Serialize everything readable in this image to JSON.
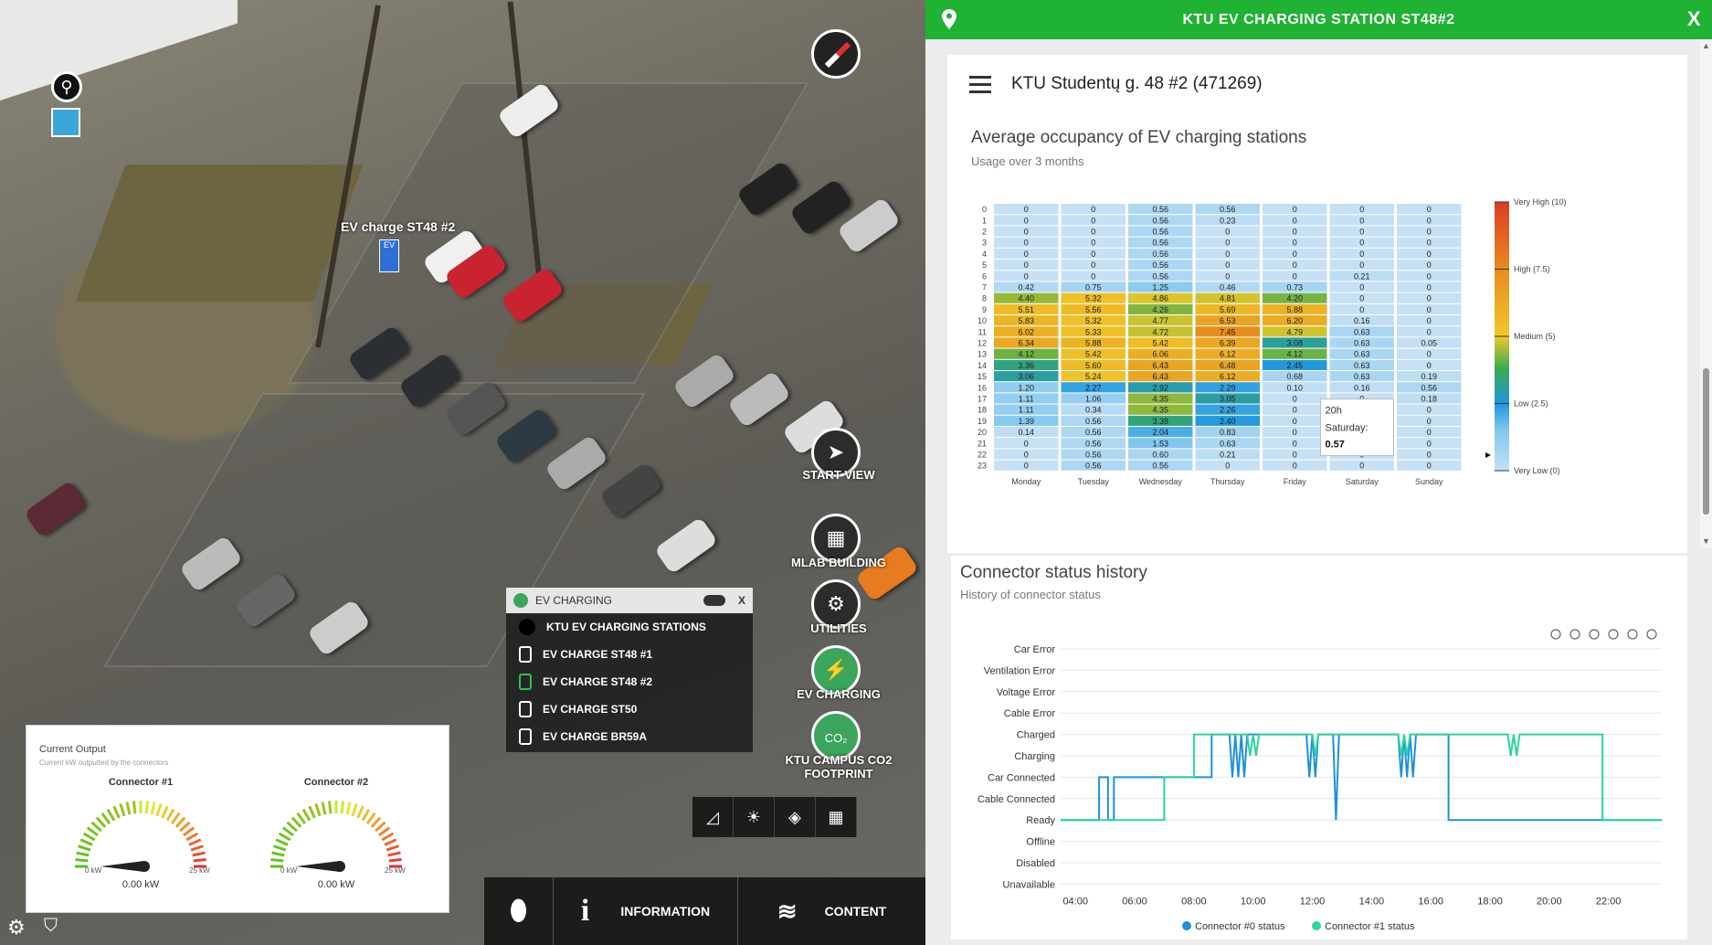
{
  "map": {
    "ev_marker_label": "EV charge ST48 #2",
    "ev_marker_icon": "EV",
    "side_buttons": [
      {
        "label": "START VIEW",
        "icon": "paper-plane-icon"
      },
      {
        "label": "MLAB BUILDING",
        "icon": "building-icon"
      },
      {
        "label": "UTILITIES",
        "icon": "utilities-icon"
      },
      {
        "label": "EV CHARGING",
        "icon": "ev-charging-icon"
      },
      {
        "label": "KTU CAMPUS CO2 FOOTPRINT",
        "icon": "co2-icon"
      }
    ],
    "ev_panel": {
      "title": "EV CHARGING",
      "close": "X",
      "items": [
        "KTU EV CHARGING STATIONS",
        "EV CHARGE ST48 #1",
        "EV CHARGE ST48 #2",
        "EV CHARGE ST50",
        "EV CHARGE BR59A"
      ]
    },
    "current_output": {
      "title": "Current Output",
      "subtitle": "Current kW outputted by the connectors",
      "gauges": [
        {
          "name": "Connector #1",
          "value": "0.00 kW",
          "min": "0 kW",
          "max": "25 kW",
          "level": 0
        },
        {
          "name": "Connector #2",
          "value": "0.00 kW",
          "min": "0 kW",
          "max": "25 kW",
          "level": 0
        }
      ]
    },
    "toolbar": {
      "information": "INFORMATION",
      "content": "CONTENT"
    }
  },
  "panel": {
    "header": "KTU EV CHARGING STATION ST48#2",
    "close": "X",
    "station_name": "KTU Studentų g. 48 #2 (471269)",
    "heatmap_title": "Average occupancy of EV charging stations",
    "heatmap_subtitle": "Usage over 3 months",
    "history_title": "Connector status history",
    "history_subtitle": "History of connector status",
    "tooltip": {
      "hour": "20h",
      "day": "Saturday:",
      "value": "0.57"
    }
  },
  "chart_data": [
    {
      "type": "heatmap",
      "title": "Average occupancy of EV charging stations",
      "subtitle": "Usage over 3 months",
      "x": [
        "Monday",
        "Tuesday",
        "Wednesday",
        "Thursday",
        "Friday",
        "Saturday",
        "Sunday"
      ],
      "y": [
        "0",
        "1",
        "2",
        "3",
        "4",
        "5",
        "6",
        "7",
        "8",
        "9",
        "10",
        "11",
        "12",
        "13",
        "14",
        "15",
        "16",
        "17",
        "18",
        "19",
        "20",
        "21",
        "22",
        "23"
      ],
      "values": [
        [
          "0",
          "0",
          "0.56",
          "0.56",
          "0",
          "0",
          "0"
        ],
        [
          "0",
          "0",
          "0.56",
          "0.23",
          "0",
          "0",
          "0"
        ],
        [
          "0",
          "0",
          "0.56",
          "0",
          "0",
          "0",
          "0"
        ],
        [
          "0",
          "0",
          "0.56",
          "0",
          "0",
          "0",
          "0"
        ],
        [
          "0",
          "0",
          "0.56",
          "0",
          "0",
          "0",
          "0"
        ],
        [
          "0",
          "0",
          "0.56",
          "0",
          "0",
          "0",
          "0"
        ],
        [
          "0",
          "0",
          "0.56",
          "0",
          "0",
          "0.21",
          "0"
        ],
        [
          "0.42",
          "0.75",
          "1.25",
          "0.46",
          "0.73",
          "0",
          "0"
        ],
        [
          "4.40",
          "5.32",
          "4.86",
          "4.81",
          "4.20",
          "0",
          "0"
        ],
        [
          "5.51",
          "5.56",
          "4.26",
          "5.69",
          "5.88",
          "0",
          "0"
        ],
        [
          "5.83",
          "5.32",
          "4.77",
          "6.53",
          "6.20",
          "0.16",
          "0"
        ],
        [
          "6.02",
          "5.33",
          "4.72",
          "7.45",
          "4.79",
          "0.63",
          "0"
        ],
        [
          "6.34",
          "5.88",
          "5.42",
          "6.39",
          "3.08",
          "0.63",
          "0.05"
        ],
        [
          "4.12",
          "5.42",
          "6.06",
          "6.12",
          "4.12",
          "0.63",
          "0"
        ],
        [
          "3.36",
          "5.60",
          "6.43",
          "6.48",
          "2.45",
          "0.63",
          "0"
        ],
        [
          "3.06",
          "5.24",
          "6.43",
          "6.12",
          "0.68",
          "0.63",
          "0.19"
        ],
        [
          "1.20",
          "2.27",
          "2.92",
          "2.29",
          "0.10",
          "0.16",
          "0.56"
        ],
        [
          "1.11",
          "1.06",
          "4.35",
          "3.05",
          "0",
          "0",
          "0.18"
        ],
        [
          "1.11",
          "0.34",
          "4.35",
          "2.26",
          "0",
          "0",
          "0"
        ],
        [
          "1.39",
          "0.56",
          "3.38",
          "2.40",
          "0",
          "0",
          "0"
        ],
        [
          "0.14",
          "0.56",
          "2.04",
          "0.83",
          "0",
          "0.57",
          "0"
        ],
        [
          "0",
          "0.56",
          "1.53",
          "0.63",
          "0",
          "0",
          "0"
        ],
        [
          "0",
          "0.56",
          "0.60",
          "0.21",
          "0",
          "0",
          "0"
        ],
        [
          "0",
          "0.56",
          "0.56",
          "0",
          "0",
          "0",
          "0"
        ]
      ],
      "legend": [
        {
          "label": "Very High (10)",
          "value": 10
        },
        {
          "label": "High (7.5)",
          "value": 7.5
        },
        {
          "label": "Medium (5)",
          "value": 5
        },
        {
          "label": "Low (2.5)",
          "value": 2.5
        },
        {
          "label": "Very Low (0)",
          "value": 0
        }
      ],
      "legend_placement": "right"
    },
    {
      "type": "line",
      "title": "Connector status history",
      "subtitle": "History of connector status",
      "y_categories": [
        "Car Error",
        "Ventilation Error",
        "Voltage Error",
        "Cable Error",
        "Charged",
        "Charging",
        "Car Connected",
        "Cable Connected",
        "Ready",
        "Offline",
        "Disabled",
        "Unavailable"
      ],
      "x_ticks": [
        "04:00",
        "06:00",
        "08:00",
        "10:00",
        "12:00",
        "14:00",
        "16:00",
        "18:00",
        "20:00",
        "22:00"
      ],
      "xlim": [
        3.5,
        23.8
      ],
      "series": [
        {
          "name": "Connector #0 status",
          "color": "#1e90e0",
          "points": [
            [
              3.5,
              "Ready"
            ],
            [
              4.8,
              "Ready"
            ],
            [
              4.8,
              "Car Connected"
            ],
            [
              5.1,
              "Car Connected"
            ],
            [
              5.1,
              "Ready"
            ],
            [
              5.3,
              "Ready"
            ],
            [
              5.3,
              "Car Connected"
            ],
            [
              8.6,
              "Car Connected"
            ],
            [
              8.6,
              "Charged"
            ],
            [
              9.2,
              "Charged"
            ],
            [
              9.3,
              "Car Connected"
            ],
            [
              9.4,
              "Charged"
            ],
            [
              9.5,
              "Car Connected"
            ],
            [
              9.6,
              "Charged"
            ],
            [
              9.7,
              "Car Connected"
            ],
            [
              9.8,
              "Charged"
            ],
            [
              11.8,
              "Charged"
            ],
            [
              11.9,
              "Car Connected"
            ],
            [
              12.0,
              "Charged"
            ],
            [
              12.1,
              "Car Connected"
            ],
            [
              12.2,
              "Charged"
            ],
            [
              12.7,
              "Charged"
            ],
            [
              12.8,
              "Ready"
            ],
            [
              12.9,
              "Charged"
            ],
            [
              14.9,
              "Charged"
            ],
            [
              15.0,
              "Car Connected"
            ],
            [
              15.1,
              "Charged"
            ],
            [
              15.2,
              "Car Connected"
            ],
            [
              15.3,
              "Charged"
            ],
            [
              15.4,
              "Car Connected"
            ],
            [
              15.5,
              "Charged"
            ],
            [
              16.6,
              "Charged"
            ],
            [
              16.6,
              "Ready"
            ],
            [
              23.8,
              "Ready"
            ]
          ]
        },
        {
          "name": "Connector #1 status",
          "color": "#2ed3a0",
          "points": [
            [
              3.5,
              "Ready"
            ],
            [
              7.0,
              "Ready"
            ],
            [
              7.0,
              "Car Connected"
            ],
            [
              8.0,
              "Car Connected"
            ],
            [
              8.0,
              "Charged"
            ],
            [
              9.8,
              "Charged"
            ],
            [
              9.9,
              "Charging"
            ],
            [
              10.0,
              "Charged"
            ],
            [
              10.1,
              "Charging"
            ],
            [
              10.2,
              "Charged"
            ],
            [
              12.0,
              "Charged"
            ],
            [
              12.1,
              "Charging"
            ],
            [
              12.2,
              "Charged"
            ],
            [
              14.9,
              "Charged"
            ],
            [
              15.0,
              "Charging"
            ],
            [
              15.1,
              "Charged"
            ],
            [
              15.2,
              "Charging"
            ],
            [
              15.3,
              "Charged"
            ],
            [
              18.6,
              "Charged"
            ],
            [
              18.7,
              "Charging"
            ],
            [
              18.8,
              "Charged"
            ],
            [
              18.9,
              "Charging"
            ],
            [
              19.0,
              "Charged"
            ],
            [
              21.8,
              "Charged"
            ],
            [
              21.8,
              "Ready"
            ],
            [
              23.8,
              "Ready"
            ]
          ]
        }
      ],
      "legend_placement": "bottom"
    }
  ]
}
